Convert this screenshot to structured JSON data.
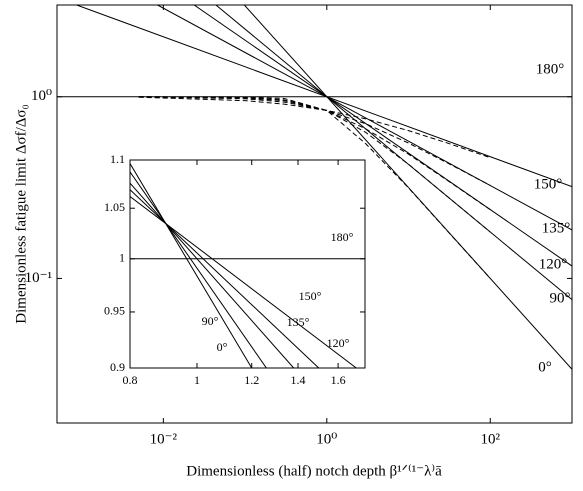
{
  "chart_data": [
    {
      "type": "line",
      "xlabel": "Dimensionless (half) notch depth β¹ᐟ⁽¹⁻λ⁾ā",
      "ylabel": "Dimensionless fatigue limit Δσf/Δσ₀",
      "xlog": true,
      "ylog": true,
      "xlim": [
        0.0005,
        1000
      ],
      "ylim": [
        0.016,
        3.2
      ],
      "xticks": [
        {
          "value": 0.01,
          "label": "10⁻²"
        },
        {
          "value": 1,
          "label": "10⁰"
        },
        {
          "value": 100,
          "label": "10²"
        }
      ],
      "yticks": [
        {
          "value": 0.1,
          "label": "10⁻¹"
        },
        {
          "value": 1,
          "label": "10⁰"
        }
      ],
      "series": [
        {
          "name": "180°",
          "color": "#000000",
          "x": [
            0.0005,
            1000
          ],
          "values": [
            1,
            1
          ]
        },
        {
          "name": "150°",
          "color": "#000000",
          "x": [
            0.00087,
            1000
          ],
          "values": [
            3.2,
            0.32
          ]
        },
        {
          "name": "135°",
          "color": "#000000",
          "x": [
            0.0085,
            1000
          ],
          "values": [
            3.2,
            0.185
          ]
        },
        {
          "name": "120°",
          "color": "#000000",
          "x": [
            0.0238,
            1000
          ],
          "values": [
            3.2,
            0.117
          ]
        },
        {
          "name": "90°",
          "color": "#000000",
          "x": [
            0.044,
            1000
          ],
          "values": [
            3.2,
            0.0764
          ]
        },
        {
          "name": "0°",
          "color": "#000000",
          "x": [
            0.098,
            1000
          ],
          "values": [
            3.2,
            0.0316
          ]
        },
        {
          "style": "dashed",
          "color": "#000000",
          "x": [
            0.005,
            0.1,
            0.3,
            1,
            3,
            10,
            30,
            100
          ],
          "values": [
            0.994,
            0.952,
            0.911,
            0.841,
            0.756,
            0.651,
            0.556,
            0.462
          ]
        },
        {
          "style": "dashed",
          "color": "#000000",
          "x": [
            0.005,
            0.1,
            0.3,
            1,
            3,
            10,
            30,
            100
          ],
          "values": [
            0.999,
            0.975,
            0.935,
            0.841,
            0.71,
            0.556,
            0.432,
            0.325
          ]
        },
        {
          "style": "dashed",
          "color": "#000000",
          "x": [
            0.005,
            0.1,
            0.3,
            1,
            3,
            10,
            30,
            100
          ],
          "values": [
            1,
            0.986,
            0.951,
            0.841,
            0.665,
            0.483,
            0.346,
            0.239
          ]
        },
        {
          "style": "dashed",
          "color": "#000000",
          "x": [
            0.005,
            0.1,
            0.3,
            1,
            3,
            10,
            30,
            100
          ],
          "values": [
            1,
            0.992,
            0.962,
            0.841,
            0.636,
            0.425,
            0.282,
            0.18
          ]
        },
        {
          "style": "dashed",
          "color": "#000000",
          "x": [
            0.005,
            0.1,
            0.3,
            1,
            3,
            10,
            30,
            100
          ],
          "values": [
            1,
            0.9975,
            0.979,
            0.841,
            0.551,
            0.315,
            0.182,
            0.1
          ]
        }
      ]
    },
    {
      "type": "line",
      "xlog": true,
      "ylog": true,
      "xlim": [
        0.8,
        1.75
      ],
      "ylim": [
        0.9,
        1.1
      ],
      "xticks": [
        {
          "value": 0.8,
          "label": "0.8"
        },
        1,
        {
          "value": 1.2,
          "label": "1.2"
        },
        {
          "value": 1.4,
          "label": "1.4"
        },
        {
          "value": 1.6,
          "label": "1.6"
        }
      ],
      "yticks": [
        {
          "value": 0.9,
          "label": "0.9"
        },
        {
          "value": 0.95,
          "label": "0.95"
        },
        1,
        {
          "value": 1.05,
          "label": "1.05"
        },
        {
          "value": 1.1,
          "label": "1.1"
        }
      ],
      "series": [
        {
          "name": "180°",
          "color": "#000000",
          "x": [
            0.8,
            1.75
          ],
          "values": [
            1,
            1
          ]
        },
        {
          "name": "150°",
          "color": "#000000",
          "x": [
            0.76,
            1.7
          ],
          "values": [
            1.074,
            0.9
          ]
        },
        {
          "name": "135°",
          "color": "#000000",
          "x": [
            0.76,
            1.5
          ],
          "values": [
            1.084,
            0.9
          ]
        },
        {
          "name": "120°",
          "color": "#000000",
          "x": [
            0.76,
            1.38
          ],
          "values": [
            1.094,
            0.9
          ]
        },
        {
          "name": "90°",
          "color": "#000000",
          "x": [
            0.76,
            1.26
          ],
          "values": [
            1.111,
            0.9
          ]
        },
        {
          "name": "0°",
          "color": "#000000",
          "x": [
            0.76,
            1.2
          ],
          "values": [
            1.124,
            0.9
          ]
        }
      ]
    }
  ]
}
